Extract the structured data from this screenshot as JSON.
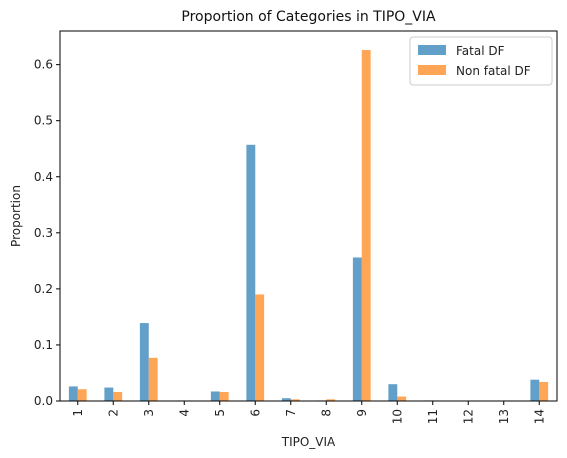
{
  "chart_data": {
    "type": "bar",
    "title": "Proportion of Categories in TIPO_VIA",
    "xlabel": "TIPO_VIA",
    "ylabel": "Proportion",
    "categories": [
      "1",
      "2",
      "3",
      "4",
      "5",
      "6",
      "7",
      "8",
      "9",
      "10",
      "11",
      "12",
      "13",
      "14"
    ],
    "ylim": [
      0,
      0.66
    ],
    "yticks": [
      "0.0",
      "0.1",
      "0.2",
      "0.3",
      "0.4",
      "0.5",
      "0.6"
    ],
    "legend_position": "top-right",
    "grid": false,
    "series": [
      {
        "name": "Fatal DF",
        "color": "#1f77b4",
        "values": [
          0.026,
          0.024,
          0.139,
          0.001,
          0.017,
          0.457,
          0.005,
          0.001,
          0.256,
          0.03,
          0.001,
          0.0,
          0.0,
          0.038
        ]
      },
      {
        "name": "Non fatal DF",
        "color": "#ff7f0e",
        "values": [
          0.021,
          0.016,
          0.077,
          0.001,
          0.016,
          0.19,
          0.003,
          0.003,
          0.626,
          0.008,
          0.001,
          0.0,
          0.001,
          0.034
        ]
      }
    ]
  }
}
